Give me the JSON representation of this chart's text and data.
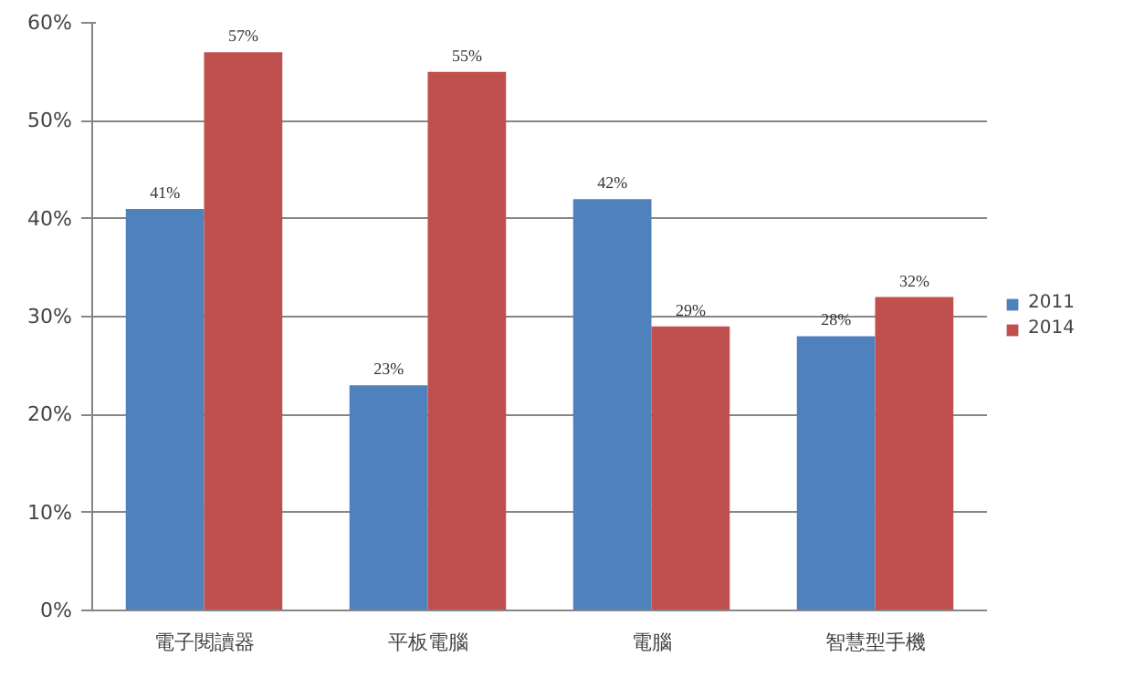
{
  "chart_data": {
    "type": "bar",
    "categories": [
      "電子閱讀器",
      "平板電腦",
      "電腦",
      "智慧型手機"
    ],
    "series": [
      {
        "name": "2011",
        "color": "#4f81bd",
        "values": [
          41,
          23,
          42,
          28
        ],
        "value_labels": [
          "41%",
          "23%",
          "42%",
          "28%"
        ]
      },
      {
        "name": "2014",
        "color": "#c0504d",
        "values": [
          57,
          55,
          29,
          32
        ],
        "value_labels": [
          "57%",
          "55%",
          "29%",
          "32%"
        ]
      }
    ],
    "ylim": [
      0,
      60
    ],
    "yticks": [
      {
        "value": 0,
        "label": "0%"
      },
      {
        "value": 10,
        "label": "10%"
      },
      {
        "value": 20,
        "label": "20%"
      },
      {
        "value": 30,
        "label": "30%"
      },
      {
        "value": 40,
        "label": "40%"
      },
      {
        "value": 50,
        "label": "50%"
      },
      {
        "value": 60,
        "label": "60%"
      }
    ],
    "grid": "y",
    "legend": "right"
  }
}
